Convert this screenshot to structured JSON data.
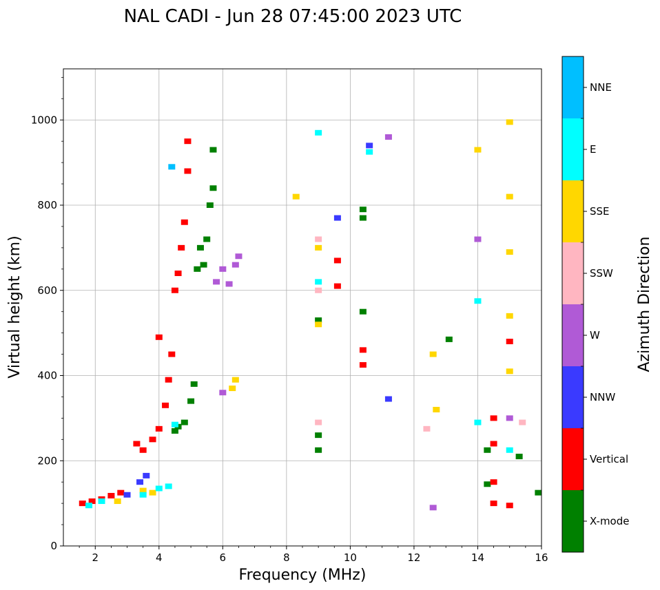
{
  "chart_data": {
    "type": "scatter",
    "title": "NAL CADI - Jun 28 07:45:00 2023 UTC",
    "xlabel": "Frequency (MHz)",
    "ylabel": "Virtual height (km)",
    "xlim": [
      1,
      16
    ],
    "ylim": [
      0,
      1120
    ],
    "xticks": [
      2,
      4,
      6,
      8,
      10,
      12,
      14,
      16
    ],
    "yticks": [
      0,
      200,
      400,
      600,
      800,
      1000
    ],
    "grid": true,
    "colorbar": {
      "title": "Azimuth Direction",
      "categories": [
        {
          "name": "X-mode",
          "color": "#008000"
        },
        {
          "name": "Vertical",
          "color": "#ff0000"
        },
        {
          "name": "NNW",
          "color": "#3a3aff"
        },
        {
          "name": "W",
          "color": "#b05ad6"
        },
        {
          "name": "SSW",
          "color": "#ffb6c1"
        },
        {
          "name": "SSE",
          "color": "#ffd700"
        },
        {
          "name": "E",
          "color": "#00ffff"
        },
        {
          "name": "NNE",
          "color": "#00bfff"
        }
      ]
    },
    "series": [
      {
        "name": "X-mode",
        "points": [
          [
            4.5,
            270
          ],
          [
            4.6,
            280
          ],
          [
            4.8,
            290
          ],
          [
            5.0,
            340
          ],
          [
            5.1,
            380
          ],
          [
            5.2,
            650
          ],
          [
            5.3,
            700
          ],
          [
            5.4,
            660
          ],
          [
            5.5,
            720
          ],
          [
            5.6,
            800
          ],
          [
            5.7,
            840
          ],
          [
            5.7,
            930
          ],
          [
            9.0,
            530
          ],
          [
            9.0,
            260
          ],
          [
            9.0,
            225
          ],
          [
            10.4,
            550
          ],
          [
            10.4,
            770
          ],
          [
            10.4,
            790
          ],
          [
            13.1,
            485
          ],
          [
            14.3,
            145
          ],
          [
            14.3,
            225
          ],
          [
            15.3,
            210
          ],
          [
            15.9,
            125
          ]
        ]
      },
      {
        "name": "Vertical",
        "points": [
          [
            1.6,
            100
          ],
          [
            1.9,
            105
          ],
          [
            2.2,
            110
          ],
          [
            2.5,
            118
          ],
          [
            2.8,
            125
          ],
          [
            3.3,
            240
          ],
          [
            3.5,
            225
          ],
          [
            3.8,
            250
          ],
          [
            4.0,
            275
          ],
          [
            4.2,
            330
          ],
          [
            4.3,
            390
          ],
          [
            4.4,
            450
          ],
          [
            4.5,
            600
          ],
          [
            4.6,
            640
          ],
          [
            4.7,
            700
          ],
          [
            4.8,
            760
          ],
          [
            4.9,
            880
          ],
          [
            4.9,
            950
          ],
          [
            4.0,
            490
          ],
          [
            9.6,
            610
          ],
          [
            9.6,
            670
          ],
          [
            10.4,
            460
          ],
          [
            10.4,
            425
          ],
          [
            14.5,
            300
          ],
          [
            14.5,
            240
          ],
          [
            14.5,
            150
          ],
          [
            14.5,
            100
          ],
          [
            15.0,
            480
          ],
          [
            15.0,
            95
          ]
        ]
      },
      {
        "name": "NNW",
        "points": [
          [
            3.0,
            120
          ],
          [
            3.4,
            150
          ],
          [
            3.6,
            165
          ],
          [
            9.6,
            770
          ],
          [
            10.6,
            940
          ],
          [
            11.2,
            345
          ]
        ]
      },
      {
        "name": "W",
        "points": [
          [
            5.8,
            620
          ],
          [
            6.0,
            650
          ],
          [
            6.2,
            615
          ],
          [
            6.4,
            660
          ],
          [
            6.5,
            680
          ],
          [
            6.0,
            360
          ],
          [
            11.2,
            960
          ],
          [
            12.6,
            90
          ],
          [
            14.0,
            720
          ],
          [
            15.0,
            300
          ]
        ]
      },
      {
        "name": "SSW",
        "points": [
          [
            9.0,
            720
          ],
          [
            9.0,
            600
          ],
          [
            9.0,
            290
          ],
          [
            12.4,
            275
          ],
          [
            15.4,
            290
          ]
        ]
      },
      {
        "name": "SSE",
        "points": [
          [
            2.7,
            105
          ],
          [
            3.5,
            130
          ],
          [
            3.8,
            125
          ],
          [
            6.3,
            370
          ],
          [
            6.4,
            390
          ],
          [
            8.3,
            820
          ],
          [
            9.0,
            700
          ],
          [
            9.0,
            520
          ],
          [
            12.6,
            450
          ],
          [
            12.7,
            320
          ],
          [
            14.0,
            930
          ],
          [
            15.0,
            995
          ],
          [
            15.0,
            820
          ],
          [
            15.0,
            690
          ],
          [
            15.0,
            540
          ],
          [
            15.0,
            410
          ]
        ]
      },
      {
        "name": "E",
        "points": [
          [
            1.8,
            95
          ],
          [
            2.2,
            105
          ],
          [
            3.5,
            120
          ],
          [
            4.0,
            135
          ],
          [
            4.3,
            140
          ],
          [
            4.5,
            285
          ],
          [
            9.0,
            970
          ],
          [
            9.0,
            620
          ],
          [
            10.6,
            925
          ],
          [
            14.0,
            575
          ],
          [
            14.0,
            290
          ],
          [
            15.0,
            225
          ]
        ]
      },
      {
        "name": "NNE",
        "points": [
          [
            4.4,
            890
          ]
        ]
      }
    ]
  }
}
